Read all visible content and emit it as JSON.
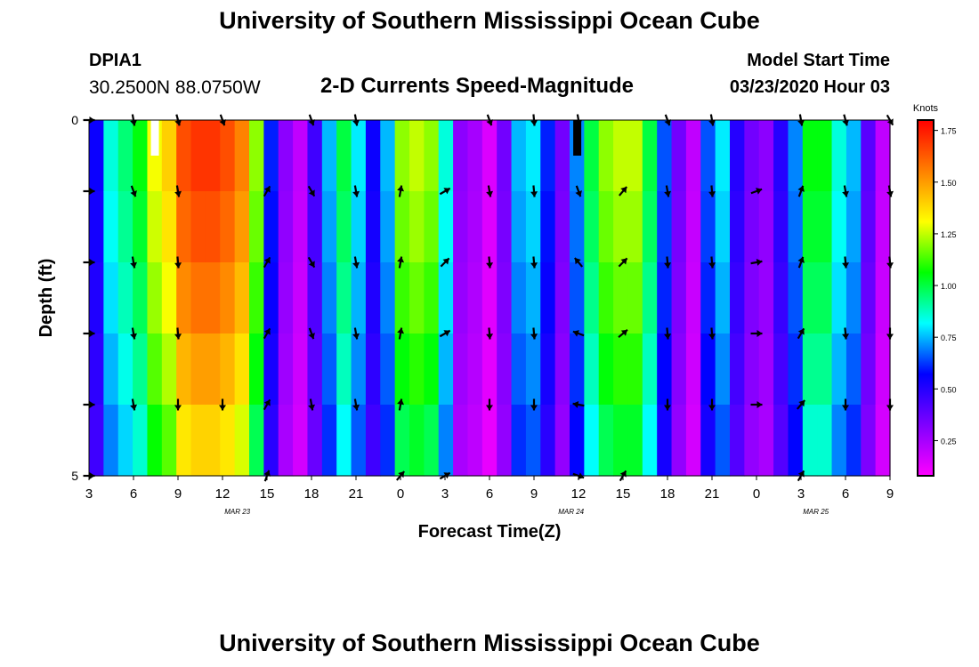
{
  "header": {
    "title": "University of Southern Mississippi Ocean Cube",
    "station_id": "DPIA1",
    "location": "30.2500N 88.0750W",
    "plot_title": "2-D Currents Speed-Magnitude",
    "start_label": "Model Start Time",
    "start_value": "03/23/2020 Hour 03"
  },
  "footer": {
    "title": "University of Southern Mississippi Ocean Cube"
  },
  "colors": {
    "colormap": [
      "#ff00ff",
      "#7f00ff",
      "#0000ff",
      "#00ffff",
      "#00ff00",
      "#ffff00",
      "#ff8000",
      "#ff0000"
    ],
    "arrow": "#000000",
    "missing_white": "#ffffff",
    "missing_black": "#000000"
  },
  "chart_data": {
    "type": "heatmap",
    "title": "2-D Currents Speed-Magnitude",
    "xlabel": "Forecast Time(Z)",
    "ylabel": "Depth (ft)",
    "units": "Knots",
    "y_ticks": [
      "0",
      "5"
    ],
    "ylim": [
      0,
      5
    ],
    "x_ticks": [
      "3",
      "6",
      "9",
      "12",
      "15",
      "18",
      "21",
      "0",
      "3",
      "6",
      "9",
      "12",
      "15",
      "18",
      "21",
      "0",
      "3",
      "6",
      "9"
    ],
    "date_labels": [
      {
        "text": "MAR 23",
        "hour_index": 10
      },
      {
        "text": "MAR 24",
        "hour_index": 32.5
      },
      {
        "text": "MAR 25",
        "hour_index": 49
      }
    ],
    "hours": 55,
    "depth_rows": 5,
    "colorbar_range": [
      0.08,
      1.8
    ],
    "colorbar_ticks": [
      "1.75",
      "1.50",
      "1.25",
      "1.00",
      "0.75",
      "0.50",
      "0.25"
    ],
    "colorbar_tick_values": [
      1.75,
      1.5,
      1.25,
      1.0,
      0.75,
      0.5,
      0.25
    ],
    "surface_speed_knots": [
      0.55,
      0.85,
      0.95,
      1.05,
      1.3,
      1.4,
      1.65,
      1.7,
      1.7,
      1.65,
      1.55,
      1.2,
      0.6,
      0.3,
      0.2,
      0.45,
      0.75,
      1.0,
      0.8,
      0.55,
      0.75,
      1.2,
      1.25,
      1.2,
      0.85,
      0.3,
      0.25,
      0.15,
      0.35,
      0.75,
      0.8,
      0.6,
      0.35,
      0.7,
      1.0,
      1.2,
      1.25,
      1.25,
      1.0,
      0.65,
      0.35,
      0.2,
      0.65,
      0.8,
      0.5,
      0.35,
      0.3,
      0.5,
      0.7,
      1.05,
      1.05,
      0.85,
      0.75,
      0.4,
      0.2
    ],
    "depth_factor": [
      1.0,
      0.97,
      0.93,
      0.88,
      0.82
    ],
    "missing_cells": [
      {
        "hour_index": 4,
        "depth_row": 0,
        "color": "white"
      },
      {
        "hour_index": 33,
        "depth_row": 0,
        "color": "black"
      }
    ],
    "vectors": [
      {
        "hour_index": 0,
        "dirs": [
          90,
          90,
          90,
          90,
          90,
          90
        ]
      },
      {
        "hour_index": 3,
        "dirs": [
          170,
          160,
          170,
          170,
          170,
          null
        ]
      },
      {
        "hour_index": 6,
        "dirs": [
          165,
          170,
          175,
          175,
          180,
          null
        ]
      },
      {
        "hour_index": 9,
        "dirs": [
          160,
          null,
          null,
          null,
          180,
          null
        ]
      },
      {
        "hour_index": 12,
        "dirs": [
          null,
          30,
          30,
          30,
          30,
          20
        ]
      },
      {
        "hour_index": 15,
        "dirs": [
          160,
          150,
          150,
          160,
          170,
          null
        ]
      },
      {
        "hour_index": 18,
        "dirs": [
          170,
          170,
          170,
          170,
          170,
          null
        ]
      },
      {
        "hour_index": 21,
        "dirs": [
          null,
          10,
          10,
          10,
          10,
          40
        ]
      },
      {
        "hour_index": 24,
        "dirs": [
          null,
          60,
          45,
          60,
          null,
          60
        ]
      },
      {
        "hour_index": 27,
        "dirs": [
          160,
          170,
          175,
          175,
          180,
          null
        ]
      },
      {
        "hour_index": 30,
        "dirs": [
          175,
          175,
          175,
          175,
          180,
          null
        ]
      },
      {
        "hour_index": 33,
        "dirs": [
          170,
          160,
          320,
          290,
          280,
          110
        ]
      },
      {
        "hour_index": 36,
        "dirs": [
          null,
          40,
          45,
          50,
          null,
          30
        ]
      },
      {
        "hour_index": 39,
        "dirs": [
          160,
          170,
          175,
          175,
          180,
          null
        ]
      },
      {
        "hour_index": 42,
        "dirs": [
          170,
          175,
          175,
          175,
          180,
          null
        ]
      },
      {
        "hour_index": 45,
        "dirs": [
          null,
          70,
          80,
          90,
          90,
          null
        ]
      },
      {
        "hour_index": 48,
        "dirs": [
          170,
          20,
          20,
          30,
          40,
          30
        ]
      },
      {
        "hour_index": 51,
        "dirs": [
          165,
          170,
          175,
          175,
          180,
          null
        ]
      },
      {
        "hour_index": 54,
        "dirs": [
          150,
          170,
          175,
          180,
          180,
          null
        ]
      }
    ]
  }
}
